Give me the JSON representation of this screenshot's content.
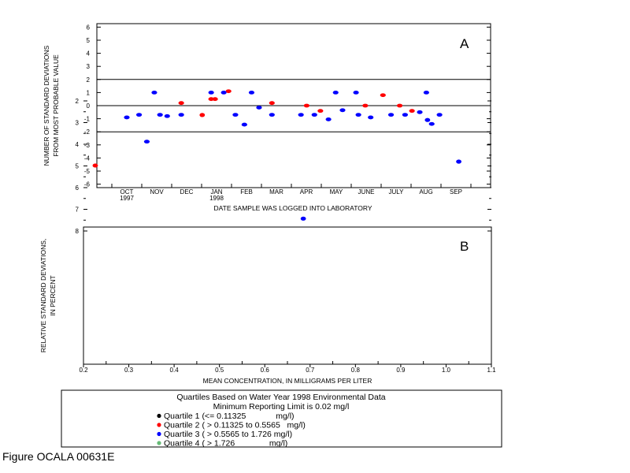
{
  "chart_data": [
    {
      "type": "scatter",
      "panel_label": "A",
      "title": "",
      "xlabel": "DATE SAMPLE WAS LOGGED INTO LABORATORY",
      "ylabel": [
        "NUMBER OF STANDARD DEVIATIONS",
        "FROM MOST PROBABLE VALUE"
      ],
      "ylim": [
        -6,
        6
      ],
      "yticks": [
        "6",
        "5",
        "4",
        "3",
        "2",
        "1",
        "0",
        "-1",
        "-2",
        "-3",
        "-4",
        "-5",
        "-6"
      ],
      "x_unit": "months since Oct 1997",
      "xticks": [
        "OCT",
        "NOV",
        "DEC",
        "JAN",
        "FEB",
        "MAR",
        "APR",
        "MAY",
        "JUNE",
        "JULY",
        "AUG",
        "SEP"
      ],
      "year_labels": [
        {
          "month": 0,
          "text": "1997"
        },
        {
          "month": 3,
          "text": "1998"
        }
      ],
      "reference_lines": [
        2,
        0,
        -2
      ],
      "series": [
        {
          "name": "Quartile 2",
          "color": "#ff0000",
          "x": [
            1.82,
            2.82,
            2.95,
            3.4,
            4.85,
            6.01,
            6.47,
            7.97,
            8.56,
            9.12,
            9.53
          ],
          "y": [
            0.2,
            0.5,
            0.5,
            1.1,
            0.2,
            0.0,
            -0.4,
            0.0,
            0.8,
            0.0,
            -0.4
          ]
        },
        {
          "name": "Quartile 3",
          "color": "#0000ff",
          "x": [
            0.0,
            0.41,
            0.67,
            0.92,
            1.11,
            1.35,
            1.82,
            2.82,
            3.24,
            3.63,
            3.93,
            4.17,
            4.42,
            4.85,
            5.82,
            6.27,
            6.74,
            6.98,
            7.21,
            7.66,
            7.74,
            8.15,
            8.83,
            9.3,
            9.79,
            10.01,
            10.19,
            10.45
          ],
          "y": [
            -0.9,
            -0.7,
            -2.75,
            1.0,
            -0.7,
            -0.8,
            -0.7,
            1.0,
            1.0,
            -0.7,
            -1.45,
            1.0,
            -0.15,
            -0.7,
            -0.7,
            -0.7,
            -1.05,
            1.0,
            -0.35,
            1.0,
            -0.7,
            -0.9,
            -0.7,
            -0.7,
            -0.5,
            1.0,
            -1.4,
            -0.7
          ]
        }
      ],
      "grid": false
    },
    {
      "type": "scatter",
      "panel_label": "B",
      "title": "",
      "xlabel": "MEAN CONCENTRATION, IN MILLIGRAMS PER LITER",
      "ylabel": [
        "RELATIVE STANDARD DEVIATIONS,",
        "IN PERCENT"
      ],
      "xlim": [
        0.2,
        1.1
      ],
      "ylim": [
        1.8,
        8.2
      ],
      "xticks": [
        "0.2",
        "0.3",
        "0.4",
        "0.5",
        "0.6",
        "0.7",
        "0.8",
        "0.9",
        "1.0",
        "1.1"
      ],
      "yticks": [
        "2",
        "3",
        "4",
        "5",
        "6",
        "7",
        "8"
      ],
      "series": [
        {
          "name": "Quartile 2",
          "color": "#ff0000",
          "x": [
            0.226,
            0.462
          ],
          "y": [
            4.98,
            2.65
          ]
        },
        {
          "name": "Quartile 3",
          "color": "#0000ff",
          "x": [
            0.685,
            0.959,
            1.028
          ],
          "y": [
            7.43,
            2.88,
            4.8
          ]
        }
      ],
      "grid": false
    }
  ],
  "legend": {
    "title1": "Quartiles Based on Water Year 1998 Environmental Data",
    "title2": "Minimum Reporting Limit is 0.02 mg/l",
    "items": [
      {
        "label": "Quartile 1 (<= 0.11325             mg/l)",
        "color": "#000000"
      },
      {
        "label": "Quartile 2 ( > 0.11325 to 0.5565   mg/l)",
        "color": "#ff0000"
      },
      {
        "label": "Quartile 3 ( > 0.5565 to 1.726 mg/l)",
        "color": "#0000ff"
      },
      {
        "label": "Quartile 4 ( > 1.726               mg/l)",
        "color": "#66bb77"
      }
    ]
  },
  "figure_caption": "Figure OCALA 00631E"
}
